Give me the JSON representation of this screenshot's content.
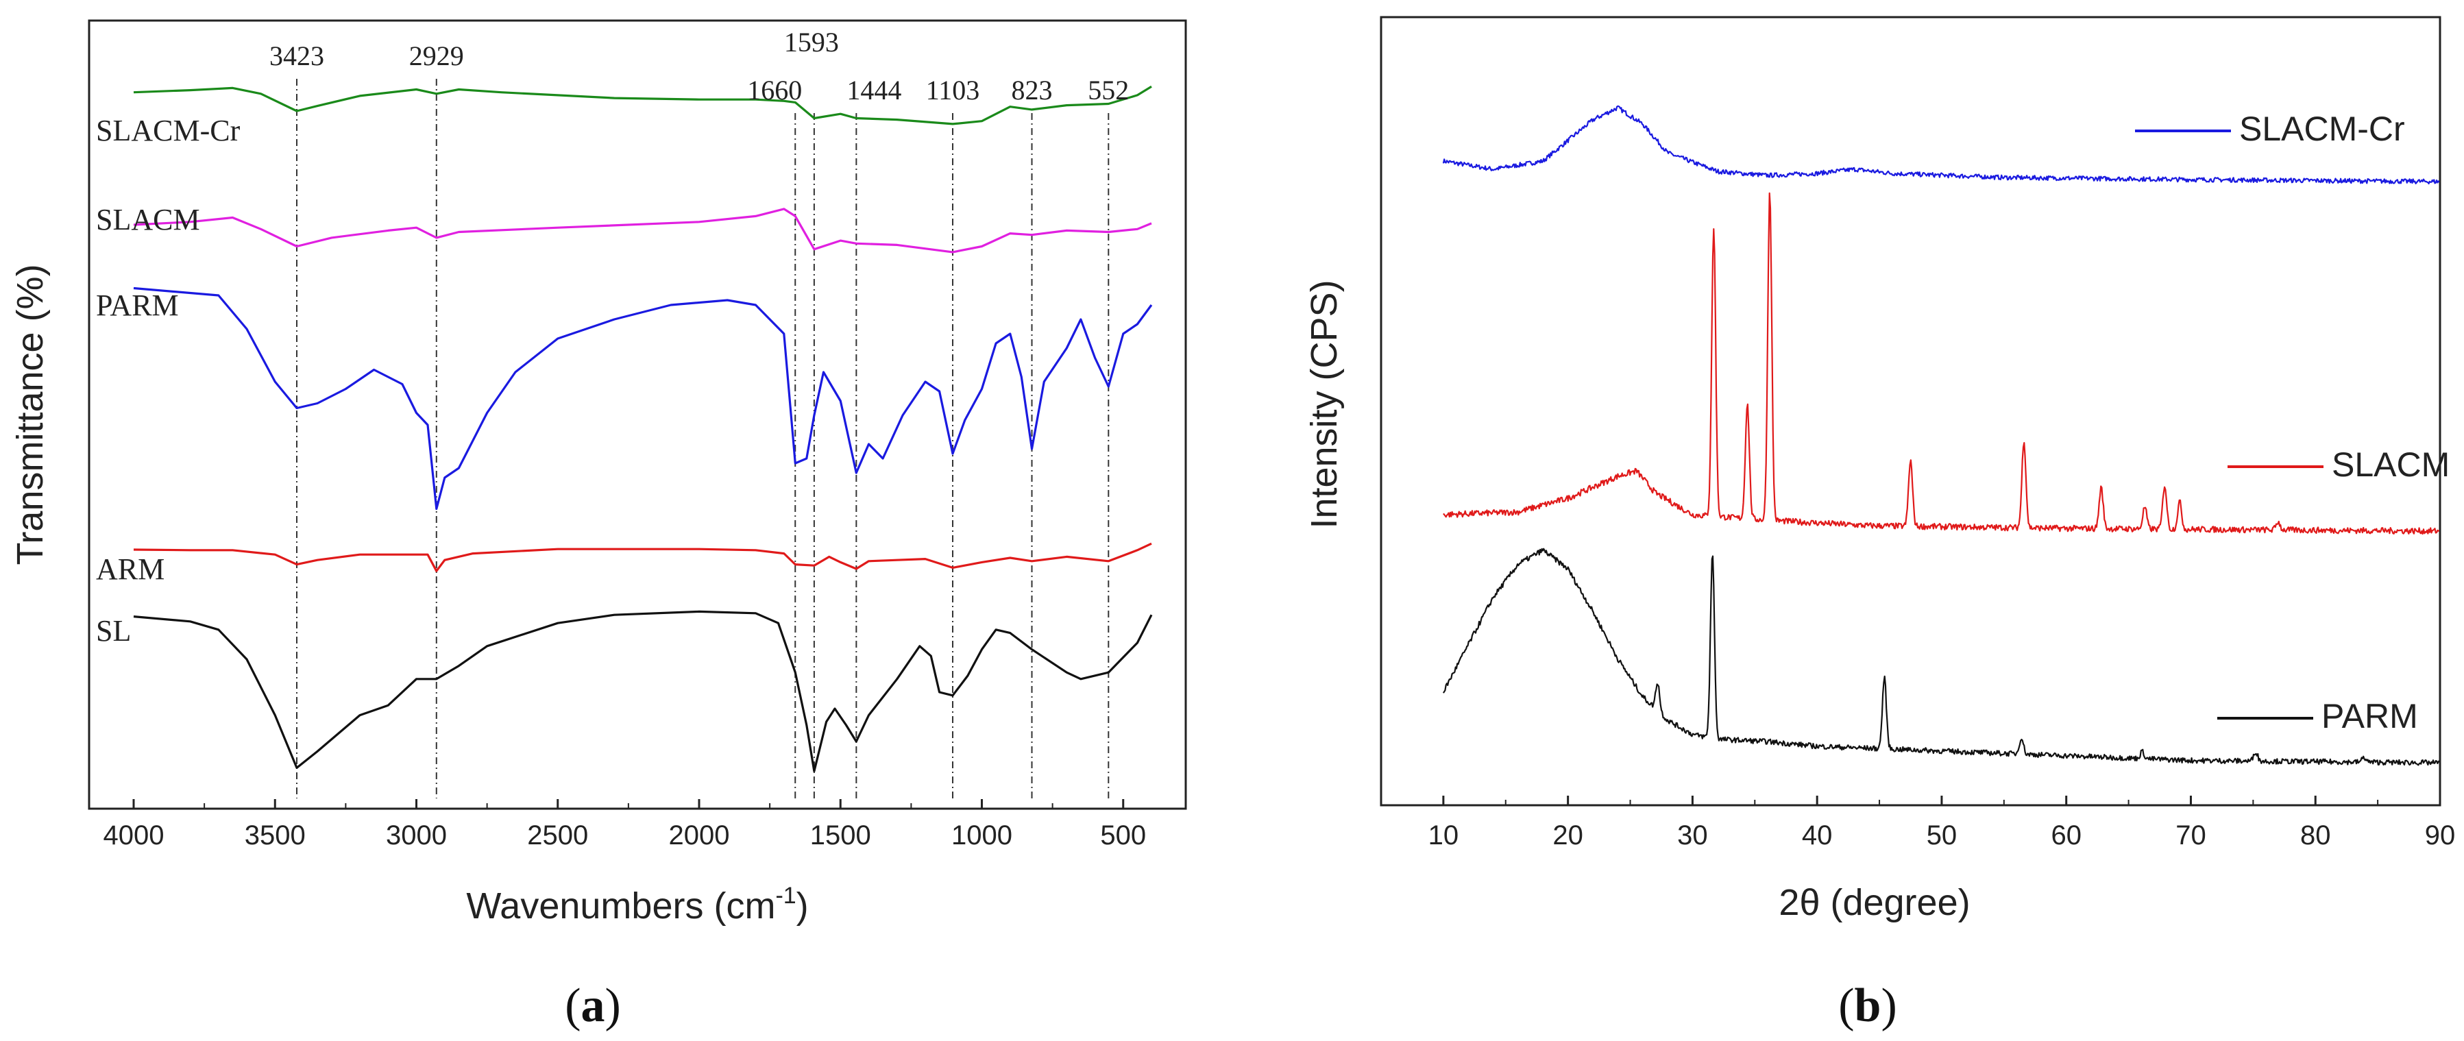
{
  "chart_data": [
    {
      "panel": "a",
      "type": "line",
      "caption_open": "(",
      "caption_letter": "a",
      "caption_close": ")",
      "xlabel_main": "Wavenumbers (cm",
      "xlabel_sup": "-1",
      "xlabel_end": ")",
      "ylabel": "Transmittance (%)",
      "xlim": [
        4000,
        400
      ],
      "xticks": [
        4000,
        3500,
        3000,
        2500,
        2000,
        1500,
        1000,
        500
      ],
      "yticks_shown": false,
      "peaks": [
        {
          "label": "3423",
          "x": 3423
        },
        {
          "label": "2929",
          "x": 2929
        },
        {
          "label": "1660",
          "x": 1660
        },
        {
          "label": "1593",
          "x": 1593
        },
        {
          "label": "1444",
          "x": 1444
        },
        {
          "label": "1103",
          "x": 1103
        },
        {
          "label": "823",
          "x": 823
        },
        {
          "label": "552",
          "x": 552
        }
      ],
      "series": [
        {
          "name": "SLACM-Cr",
          "color": "#1a8a1a",
          "points": [
            [
              4000,
              0.86
            ],
            [
              3800,
              0.89
            ],
            [
              3650,
              0.92
            ],
            [
              3550,
              0.84
            ],
            [
              3423,
              0.6
            ],
            [
              3350,
              0.67
            ],
            [
              3200,
              0.81
            ],
            [
              3000,
              0.9
            ],
            [
              2929,
              0.84
            ],
            [
              2850,
              0.9
            ],
            [
              2700,
              0.86
            ],
            [
              2300,
              0.78
            ],
            [
              2000,
              0.76
            ],
            [
              1800,
              0.76
            ],
            [
              1700,
              0.74
            ],
            [
              1660,
              0.72
            ],
            [
              1593,
              0.5
            ],
            [
              1500,
              0.56
            ],
            [
              1444,
              0.5
            ],
            [
              1300,
              0.48
            ],
            [
              1103,
              0.42
            ],
            [
              1000,
              0.46
            ],
            [
              900,
              0.66
            ],
            [
              823,
              0.62
            ],
            [
              700,
              0.68
            ],
            [
              552,
              0.7
            ],
            [
              450,
              0.82
            ],
            [
              400,
              0.94
            ]
          ]
        },
        {
          "name": "SLACM",
          "color": "#e020e0",
          "points": [
            [
              4000,
              0.4
            ],
            [
              3800,
              0.44
            ],
            [
              3650,
              0.5
            ],
            [
              3550,
              0.34
            ],
            [
              3423,
              0.1
            ],
            [
              3300,
              0.22
            ],
            [
              3100,
              0.32
            ],
            [
              3000,
              0.36
            ],
            [
              2929,
              0.22
            ],
            [
              2850,
              0.3
            ],
            [
              2500,
              0.36
            ],
            [
              2000,
              0.44
            ],
            [
              1800,
              0.52
            ],
            [
              1700,
              0.62
            ],
            [
              1660,
              0.52
            ],
            [
              1593,
              0.06
            ],
            [
              1500,
              0.18
            ],
            [
              1444,
              0.14
            ],
            [
              1300,
              0.12
            ],
            [
              1103,
              0.02
            ],
            [
              1000,
              0.1
            ],
            [
              900,
              0.28
            ],
            [
              823,
              0.26
            ],
            [
              700,
              0.32
            ],
            [
              552,
              0.3
            ],
            [
              450,
              0.34
            ],
            [
              400,
              0.42
            ]
          ]
        },
        {
          "name": "PARM",
          "color": "#1a1ae0",
          "points": [
            [
              4000,
              0.97
            ],
            [
              3800,
              0.95
            ],
            [
              3700,
              0.94
            ],
            [
              3600,
              0.8
            ],
            [
              3500,
              0.58
            ],
            [
              3423,
              0.47
            ],
            [
              3350,
              0.49
            ],
            [
              3250,
              0.55
            ],
            [
              3150,
              0.63
            ],
            [
              3050,
              0.57
            ],
            [
              3000,
              0.45
            ],
            [
              2960,
              0.4
            ],
            [
              2929,
              0.05
            ],
            [
              2900,
              0.18
            ],
            [
              2850,
              0.22
            ],
            [
              2750,
              0.45
            ],
            [
              2650,
              0.62
            ],
            [
              2500,
              0.76
            ],
            [
              2300,
              0.84
            ],
            [
              2100,
              0.9
            ],
            [
              1900,
              0.92
            ],
            [
              1800,
              0.9
            ],
            [
              1700,
              0.78
            ],
            [
              1660,
              0.24
            ],
            [
              1620,
              0.26
            ],
            [
              1593,
              0.44
            ],
            [
              1560,
              0.62
            ],
            [
              1500,
              0.5
            ],
            [
              1444,
              0.2
            ],
            [
              1400,
              0.32
            ],
            [
              1350,
              0.26
            ],
            [
              1280,
              0.44
            ],
            [
              1200,
              0.58
            ],
            [
              1150,
              0.54
            ],
            [
              1103,
              0.28
            ],
            [
              1060,
              0.42
            ],
            [
              1000,
              0.55
            ],
            [
              950,
              0.74
            ],
            [
              900,
              0.78
            ],
            [
              860,
              0.6
            ],
            [
              823,
              0.3
            ],
            [
              780,
              0.58
            ],
            [
              700,
              0.72
            ],
            [
              650,
              0.84
            ],
            [
              600,
              0.68
            ],
            [
              552,
              0.56
            ],
            [
              500,
              0.78
            ],
            [
              450,
              0.82
            ],
            [
              400,
              0.9
            ]
          ]
        },
        {
          "name": "ARM",
          "color": "#e01a1a",
          "points": [
            [
              4000,
              0.85
            ],
            [
              3800,
              0.84
            ],
            [
              3650,
              0.84
            ],
            [
              3500,
              0.76
            ],
            [
              3423,
              0.58
            ],
            [
              3350,
              0.66
            ],
            [
              3200,
              0.76
            ],
            [
              3050,
              0.76
            ],
            [
              2960,
              0.76
            ],
            [
              2929,
              0.46
            ],
            [
              2900,
              0.66
            ],
            [
              2800,
              0.78
            ],
            [
              2500,
              0.86
            ],
            [
              2000,
              0.86
            ],
            [
              1800,
              0.84
            ],
            [
              1700,
              0.78
            ],
            [
              1660,
              0.58
            ],
            [
              1593,
              0.56
            ],
            [
              1540,
              0.72
            ],
            [
              1500,
              0.62
            ],
            [
              1444,
              0.5
            ],
            [
              1400,
              0.64
            ],
            [
              1300,
              0.66
            ],
            [
              1200,
              0.68
            ],
            [
              1103,
              0.52
            ],
            [
              1000,
              0.62
            ],
            [
              900,
              0.7
            ],
            [
              823,
              0.64
            ],
            [
              700,
              0.72
            ],
            [
              552,
              0.64
            ],
            [
              450,
              0.84
            ],
            [
              400,
              0.96
            ]
          ]
        },
        {
          "name": "SL",
          "color": "#111111",
          "points": [
            [
              4000,
              0.96
            ],
            [
              3800,
              0.93
            ],
            [
              3700,
              0.88
            ],
            [
              3600,
              0.7
            ],
            [
              3500,
              0.36
            ],
            [
              3423,
              0.04
            ],
            [
              3350,
              0.14
            ],
            [
              3200,
              0.36
            ],
            [
              3100,
              0.42
            ],
            [
              3000,
              0.58
            ],
            [
              2929,
              0.58
            ],
            [
              2850,
              0.66
            ],
            [
              2750,
              0.78
            ],
            [
              2500,
              0.92
            ],
            [
              2300,
              0.97
            ],
            [
              2000,
              0.99
            ],
            [
              1800,
              0.98
            ],
            [
              1720,
              0.92
            ],
            [
              1660,
              0.62
            ],
            [
              1620,
              0.3
            ],
            [
              1593,
              0.02
            ],
            [
              1550,
              0.32
            ],
            [
              1520,
              0.4
            ],
            [
              1480,
              0.3
            ],
            [
              1444,
              0.2
            ],
            [
              1400,
              0.36
            ],
            [
              1300,
              0.58
            ],
            [
              1220,
              0.78
            ],
            [
              1180,
              0.72
            ],
            [
              1150,
              0.5
            ],
            [
              1103,
              0.48
            ],
            [
              1050,
              0.6
            ],
            [
              1000,
              0.76
            ],
            [
              950,
              0.88
            ],
            [
              900,
              0.86
            ],
            [
              823,
              0.76
            ],
            [
              700,
              0.62
            ],
            [
              650,
              0.58
            ],
            [
              552,
              0.62
            ],
            [
              450,
              0.8
            ],
            [
              400,
              0.97
            ]
          ]
        }
      ],
      "series_labels": [
        {
          "text": "SLACM-Cr"
        },
        {
          "text": "SLACM"
        },
        {
          "text": "PARM"
        },
        {
          "text": "ARM"
        },
        {
          "text": "SL"
        }
      ]
    },
    {
      "panel": "b",
      "type": "line",
      "caption_open": "(",
      "caption_letter": "b",
      "caption_close": ")",
      "xlabel": "2θ (degree)",
      "ylabel": "Intensity (CPS)",
      "xlim": [
        5,
        90
      ],
      "xticks": [
        10,
        20,
        30,
        40,
        50,
        60,
        70,
        80,
        90
      ],
      "yticks_shown": false,
      "series": [
        {
          "name": "SLACM-Cr",
          "color": "#1a1ae0",
          "points": [
            [
              10,
              0.1
            ],
            [
              14,
              0.06
            ],
            [
              18,
              0.1
            ],
            [
              22,
              0.3
            ],
            [
              24,
              0.36
            ],
            [
              26,
              0.28
            ],
            [
              28,
              0.14
            ],
            [
              32,
              0.05
            ],
            [
              36,
              0.03
            ],
            [
              40,
              0.04
            ],
            [
              43,
              0.06
            ],
            [
              46,
              0.04
            ],
            [
              55,
              0.02
            ],
            [
              70,
              0.01
            ],
            [
              90,
              0.0
            ]
          ]
        },
        {
          "name": "SLACM",
          "color": "#e01a1a",
          "peaks": [
            [
              31.7,
              1.05
            ],
            [
              34.4,
              0.42
            ],
            [
              36.2,
              1.2
            ],
            [
              47.5,
              0.24
            ],
            [
              56.6,
              0.32
            ],
            [
              62.8,
              0.15
            ],
            [
              66.3,
              0.08
            ],
            [
              67.9,
              0.16
            ],
            [
              69.1,
              0.1
            ],
            [
              77.0,
              0.03
            ]
          ],
          "points": [
            [
              10,
              0.06
            ],
            [
              16,
              0.07
            ],
            [
              20,
              0.12
            ],
            [
              24,
              0.2
            ],
            [
              25.5,
              0.22
            ],
            [
              27,
              0.14
            ],
            [
              30,
              0.06
            ],
            [
              36,
              0.04
            ],
            [
              44,
              0.02
            ],
            [
              60,
              0.01
            ],
            [
              90,
              0.0
            ]
          ]
        },
        {
          "name": "PARM",
          "color": "#111111",
          "peaks": [
            [
              27.2,
              0.12
            ],
            [
              31.6,
              0.78
            ],
            [
              45.4,
              0.3
            ],
            [
              56.4,
              0.07
            ],
            [
              66.1,
              0.03
            ],
            [
              75.2,
              0.04
            ],
            [
              83.9,
              0.02
            ]
          ],
          "points": [
            [
              10,
              0.32
            ],
            [
              12,
              0.52
            ],
            [
              14,
              0.72
            ],
            [
              16,
              0.86
            ],
            [
              18,
              0.92
            ],
            [
              20,
              0.84
            ],
            [
              22,
              0.66
            ],
            [
              24,
              0.46
            ],
            [
              26,
              0.3
            ],
            [
              28,
              0.2
            ],
            [
              30,
              0.14
            ],
            [
              32,
              0.12
            ],
            [
              36,
              0.11
            ],
            [
              40,
              0.09
            ],
            [
              45,
              0.08
            ],
            [
              55,
              0.06
            ],
            [
              70,
              0.03
            ],
            [
              90,
              0.02
            ]
          ]
        }
      ],
      "legend": [
        {
          "text": "SLACM-Cr",
          "color": "#1a1ae0"
        },
        {
          "text": "SLACM",
          "color": "#e01a1a"
        },
        {
          "text": "PARM",
          "color": "#111111"
        }
      ]
    }
  ]
}
